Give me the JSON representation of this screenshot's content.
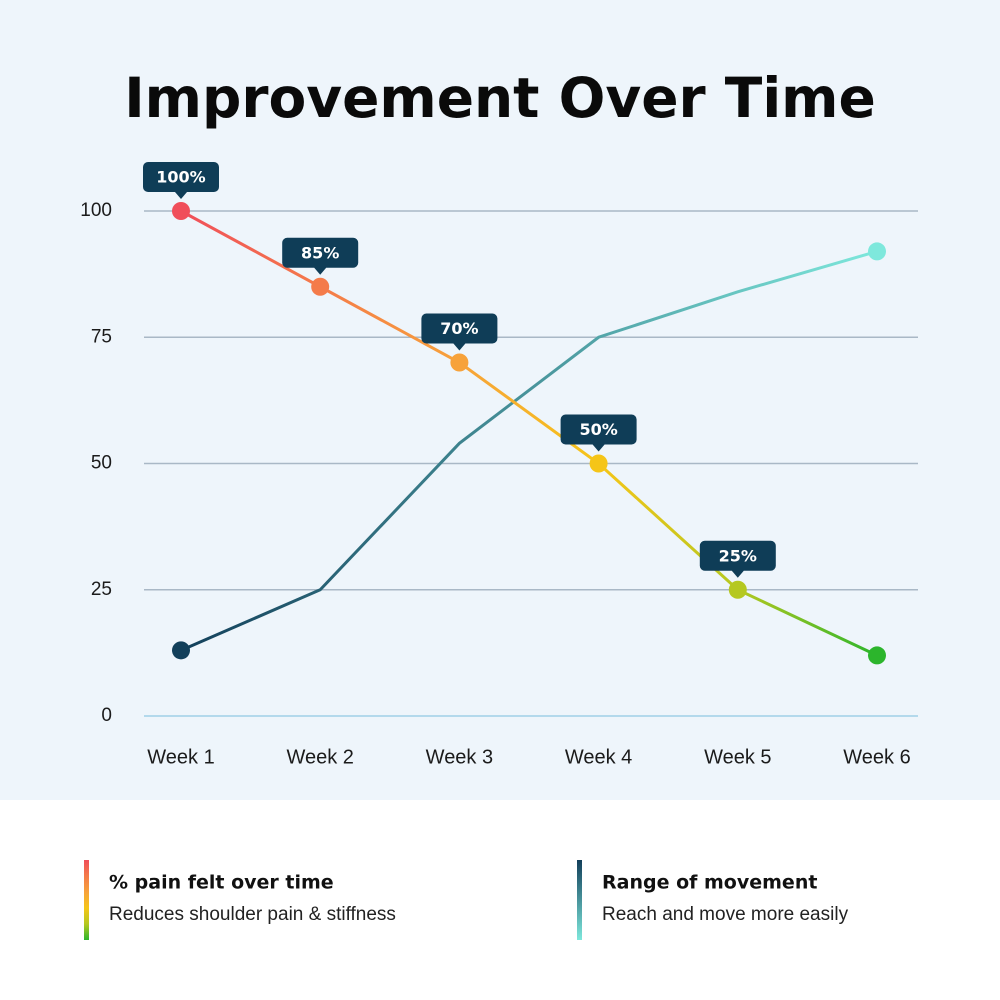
{
  "chart_data": {
    "type": "line",
    "title": "Improvement Over Time",
    "categories": [
      "Week 1",
      "Week 2",
      "Week 3",
      "Week 4",
      "Week 5",
      "Week 6"
    ],
    "ylim": [
      0,
      100
    ],
    "yticks": [
      0,
      25,
      50,
      75,
      100
    ],
    "grid": true,
    "series": [
      {
        "name": "% pain felt over time",
        "description": "Reduces shoulder pain & stiffness",
        "colors": [
          "#f04e5a",
          "#f47b4a",
          "#f7a23a",
          "#f5c518",
          "#b5c820",
          "#2cb52c"
        ],
        "markers": "all",
        "values": [
          100,
          85,
          70,
          50,
          25,
          12
        ],
        "value_labels": [
          "100%",
          "85%",
          "70%",
          "50%",
          "25%",
          null
        ]
      },
      {
        "name": "Range of movement",
        "description": "Reach and move more easily",
        "colors": [
          "#123f5a",
          "#7ee8dc"
        ],
        "markers": "ends",
        "values": [
          13,
          25,
          54,
          75,
          84,
          92
        ]
      }
    ]
  }
}
